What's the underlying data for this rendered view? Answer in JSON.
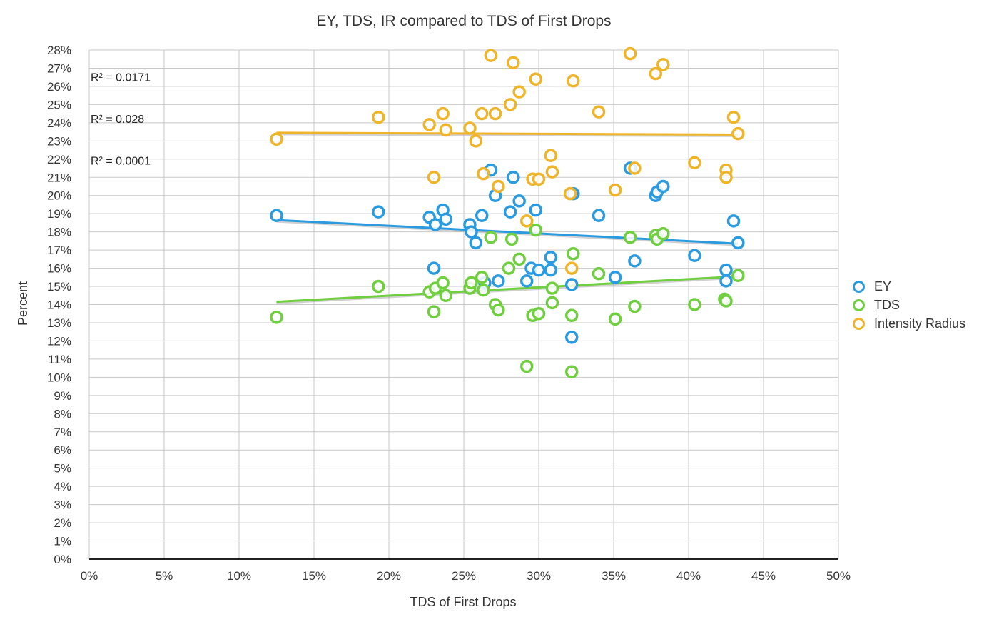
{
  "chart_data": {
    "type": "scatter",
    "title": "EY, TDS, IR compared to TDS of First Drops",
    "xlabel": "TDS of First Drops",
    "ylabel": "Percent",
    "xlim": [
      0,
      50
    ],
    "ylim": [
      0,
      28
    ],
    "x_ticks": [
      0,
      5,
      10,
      15,
      20,
      25,
      30,
      35,
      40,
      45,
      50
    ],
    "y_ticks": [
      0,
      1,
      2,
      3,
      4,
      5,
      6,
      7,
      8,
      9,
      10,
      11,
      12,
      13,
      14,
      15,
      16,
      17,
      18,
      19,
      20,
      21,
      22,
      23,
      24,
      25,
      26,
      27,
      28
    ],
    "tick_suffix": "%",
    "grid": true,
    "legend_position": "right",
    "series": [
      {
        "name": "EY",
        "color": "#2a9be0",
        "trendline": {
          "x": [
            12.5,
            43.3
          ],
          "y": [
            18.65,
            17.35
          ]
        },
        "points": [
          [
            12.5,
            18.9
          ],
          [
            19.3,
            19.1
          ],
          [
            22.7,
            18.8
          ],
          [
            23.0,
            16.0
          ],
          [
            23.1,
            18.4
          ],
          [
            23.6,
            19.2
          ],
          [
            23.8,
            18.7
          ],
          [
            25.4,
            18.4
          ],
          [
            25.5,
            18.0
          ],
          [
            25.8,
            17.4
          ],
          [
            26.2,
            18.9
          ],
          [
            26.4,
            15.2
          ],
          [
            26.8,
            21.4
          ],
          [
            27.1,
            20.0
          ],
          [
            27.3,
            15.3
          ],
          [
            28.1,
            19.1
          ],
          [
            28.3,
            21.0
          ],
          [
            28.7,
            19.7
          ],
          [
            29.2,
            15.3
          ],
          [
            29.5,
            16.0
          ],
          [
            29.8,
            19.2
          ],
          [
            30.0,
            15.9
          ],
          [
            30.8,
            16.6
          ],
          [
            30.8,
            15.9
          ],
          [
            32.2,
            15.1
          ],
          [
            32.2,
            12.2
          ],
          [
            32.3,
            20.1
          ],
          [
            34.0,
            18.9
          ],
          [
            35.1,
            15.5
          ],
          [
            36.1,
            21.5
          ],
          [
            36.4,
            16.4
          ],
          [
            37.8,
            20.0
          ],
          [
            37.9,
            20.2
          ],
          [
            38.3,
            20.5
          ],
          [
            40.4,
            16.7
          ],
          [
            42.5,
            15.9
          ],
          [
            42.5,
            15.3
          ],
          [
            43.0,
            18.6
          ],
          [
            43.3,
            17.4
          ]
        ]
      },
      {
        "name": "TDS",
        "color": "#6fcf3e",
        "trendline": {
          "x": [
            12.5,
            43.3
          ],
          "y": [
            14.15,
            15.55
          ]
        },
        "points": [
          [
            12.5,
            13.3
          ],
          [
            19.3,
            15.0
          ],
          [
            22.7,
            14.7
          ],
          [
            23.0,
            13.6
          ],
          [
            23.1,
            14.9
          ],
          [
            23.6,
            15.2
          ],
          [
            23.8,
            14.5
          ],
          [
            25.4,
            14.9
          ],
          [
            25.5,
            15.2
          ],
          [
            26.2,
            15.5
          ],
          [
            26.3,
            14.8
          ],
          [
            26.8,
            17.7
          ],
          [
            27.1,
            14.0
          ],
          [
            27.3,
            13.7
          ],
          [
            28.0,
            16.0
          ],
          [
            28.2,
            17.6
          ],
          [
            28.7,
            16.5
          ],
          [
            29.2,
            10.6
          ],
          [
            29.6,
            13.4
          ],
          [
            29.8,
            18.1
          ],
          [
            30.0,
            13.5
          ],
          [
            30.9,
            14.9
          ],
          [
            30.9,
            14.1
          ],
          [
            32.2,
            13.4
          ],
          [
            32.2,
            10.3
          ],
          [
            32.3,
            16.8
          ],
          [
            34.0,
            15.7
          ],
          [
            35.1,
            13.2
          ],
          [
            36.1,
            17.7
          ],
          [
            36.4,
            13.9
          ],
          [
            37.8,
            17.8
          ],
          [
            37.9,
            17.6
          ],
          [
            38.3,
            17.9
          ],
          [
            40.4,
            14.0
          ],
          [
            42.4,
            14.3
          ],
          [
            42.5,
            14.2
          ],
          [
            43.3,
            15.6
          ]
        ]
      },
      {
        "name": "Intensity Radius",
        "color": "#f0b429",
        "trendline": {
          "x": [
            12.5,
            43.3
          ],
          "y": [
            23.45,
            23.35
          ]
        },
        "points": [
          [
            12.5,
            23.1
          ],
          [
            19.3,
            24.3
          ],
          [
            22.7,
            23.9
          ],
          [
            23.0,
            21.0
          ],
          [
            23.6,
            24.5
          ],
          [
            23.8,
            23.6
          ],
          [
            25.4,
            23.7
          ],
          [
            25.8,
            23.0
          ],
          [
            26.2,
            24.5
          ],
          [
            26.3,
            21.2
          ],
          [
            26.8,
            27.7
          ],
          [
            27.1,
            24.5
          ],
          [
            27.3,
            20.5
          ],
          [
            28.1,
            25.0
          ],
          [
            28.3,
            27.3
          ],
          [
            28.7,
            25.7
          ],
          [
            29.2,
            18.6
          ],
          [
            29.6,
            20.9
          ],
          [
            29.8,
            26.4
          ],
          [
            30.0,
            20.9
          ],
          [
            30.8,
            22.2
          ],
          [
            30.9,
            21.3
          ],
          [
            32.1,
            20.1
          ],
          [
            32.2,
            16.0
          ],
          [
            32.3,
            26.3
          ],
          [
            34.0,
            24.6
          ],
          [
            35.1,
            20.3
          ],
          [
            36.1,
            27.8
          ],
          [
            36.4,
            21.5
          ],
          [
            37.8,
            26.7
          ],
          [
            38.3,
            27.2
          ],
          [
            40.4,
            21.8
          ],
          [
            42.5,
            21.4
          ],
          [
            42.5,
            21.0
          ],
          [
            43.0,
            24.3
          ],
          [
            43.3,
            23.4
          ]
        ]
      }
    ],
    "annotations": [
      "R² = 0.0171",
      "R² = 0.028",
      "R² = 0.0001"
    ]
  }
}
